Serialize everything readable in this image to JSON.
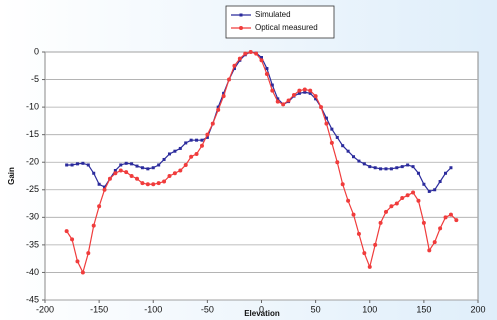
{
  "chart_data": {
    "type": "line",
    "xlabel": "Elevation",
    "ylabel": "Gain",
    "x": [
      -180,
      -175,
      -170,
      -165,
      -160,
      -155,
      -150,
      -145,
      -140,
      -135,
      -130,
      -125,
      -120,
      -115,
      -110,
      -105,
      -100,
      -95,
      -90,
      -85,
      -80,
      -75,
      -70,
      -65,
      -60,
      -55,
      -50,
      -45,
      -40,
      -35,
      -30,
      -25,
      -20,
      -15,
      -10,
      -5,
      0,
      5,
      10,
      15,
      20,
      25,
      30,
      35,
      40,
      45,
      50,
      55,
      60,
      65,
      70,
      75,
      80,
      85,
      90,
      95,
      100,
      105,
      110,
      115,
      120,
      125,
      130,
      135,
      140,
      145,
      150,
      155,
      160,
      165,
      170,
      175,
      180
    ],
    "series": [
      {
        "name": "Simulated",
        "color": "#2b2b9c",
        "marker": "square",
        "values": [
          -20.5,
          -20.5,
          -20.3,
          -20.2,
          -20.5,
          -22,
          -24,
          -24.5,
          -23,
          -21.5,
          -20.5,
          -20.2,
          -20.3,
          -20.7,
          -21,
          -21.2,
          -21,
          -20.5,
          -19.5,
          -18.5,
          -18,
          -17.5,
          -16.5,
          -16,
          -16,
          -16,
          -15.5,
          -13,
          -10,
          -7.5,
          -5,
          -3,
          -1.5,
          -0.5,
          0,
          -0.2,
          -1,
          -3,
          -6,
          -8.5,
          -9.5,
          -9,
          -8,
          -7.5,
          -7.3,
          -7.5,
          -8.5,
          -10,
          -12,
          -14,
          -15.5,
          -17,
          -18,
          -19,
          -19.8,
          -20.3,
          -20.8,
          -21,
          -21.2,
          -21.2,
          -21.2,
          -21,
          -20.8,
          -20.5,
          -20.8,
          -22,
          -24,
          -25.3,
          -25,
          -23.5,
          -22,
          -21,
          null
        ]
      },
      {
        "name": "Optical measured",
        "color": "#f03c3c",
        "marker": "circle",
        "values": [
          -32.5,
          -34,
          -38,
          -40,
          -36.5,
          -31.5,
          -28,
          -25,
          -23,
          -22,
          -21.5,
          -21.8,
          -22.5,
          -23,
          -23.8,
          -24,
          -24,
          -23.8,
          -23.5,
          -22.5,
          -22,
          -21.5,
          -20.5,
          -19,
          -18.5,
          -17,
          -15,
          -13,
          -10.5,
          -8,
          -5,
          -2.5,
          -1.2,
          -0.3,
          0,
          -0.3,
          -1.5,
          -4,
          -7,
          -9,
          -9.5,
          -8.8,
          -7.8,
          -7,
          -6.8,
          -7,
          -8,
          -10,
          -13,
          -16.5,
          -20,
          -24,
          -27,
          -29.5,
          -33,
          -36.5,
          -39,
          -35,
          -31,
          -29,
          -28,
          -27.5,
          -26.5,
          -26,
          -25.5,
          -27,
          -31,
          -36,
          -34.5,
          -32,
          -30,
          -29.5,
          -30.5
        ]
      }
    ],
    "xlim": [
      -200,
      200
    ],
    "xticks": [
      -200,
      -150,
      -100,
      -50,
      0,
      50,
      100,
      150,
      200
    ],
    "ylim": [
      -45,
      0
    ],
    "yticks": [
      0,
      -5,
      -10,
      -15,
      -20,
      -25,
      -30,
      -35,
      -40,
      -45
    ],
    "grid": true,
    "legend": "top"
  }
}
